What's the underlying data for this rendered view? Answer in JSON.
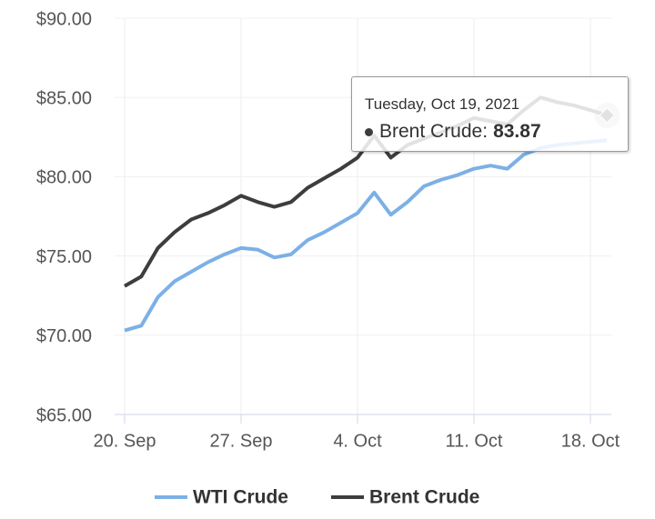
{
  "chart_data": {
    "type": "line",
    "x": [
      "20. Sep",
      "21. Sep",
      "22. Sep",
      "23. Sep",
      "24. Sep",
      "25. Sep",
      "26. Sep",
      "27. Sep",
      "28. Sep",
      "29. Sep",
      "30. Sep",
      "1. Oct",
      "2. Oct",
      "3. Oct",
      "4. Oct",
      "5. Oct",
      "6. Oct",
      "7. Oct",
      "8. Oct",
      "9. Oct",
      "10. Oct",
      "11. Oct",
      "12. Oct",
      "13. Oct",
      "14. Oct",
      "15. Oct",
      "16. Oct",
      "17. Oct",
      "18. Oct",
      "19. Oct"
    ],
    "xticks": [
      "20. Sep",
      "27. Sep",
      "4. Oct",
      "11. Oct",
      "18. Oct"
    ],
    "series": [
      {
        "name": "WTI Crude",
        "color": "#7cb0e6",
        "values": [
          70.3,
          70.6,
          72.4,
          73.4,
          74.0,
          74.6,
          75.1,
          75.5,
          75.4,
          74.9,
          75.1,
          76.0,
          76.5,
          77.1,
          77.7,
          79.0,
          77.6,
          78.4,
          79.4,
          79.8,
          80.1,
          80.5,
          80.7,
          80.5,
          81.4,
          81.8,
          82.0,
          82.1,
          82.2,
          82.3
        ]
      },
      {
        "name": "Brent Crude",
        "color": "#3d3d3d",
        "values": [
          73.1,
          73.7,
          75.5,
          76.5,
          77.3,
          77.7,
          78.2,
          78.8,
          78.4,
          78.1,
          78.4,
          79.3,
          79.9,
          80.5,
          81.2,
          82.6,
          81.2,
          82.0,
          82.4,
          82.8,
          83.2,
          83.7,
          83.5,
          83.3,
          84.2,
          85.0,
          84.7,
          84.5,
          84.2,
          83.87
        ]
      }
    ],
    "ylim": [
      65,
      90
    ],
    "yticks": [
      {
        "value": 65,
        "label": "$65.00"
      },
      {
        "value": 70,
        "label": "$70.00"
      },
      {
        "value": 75,
        "label": "$75.00"
      },
      {
        "value": 80,
        "label": "$80.00"
      },
      {
        "value": 85,
        "label": "$85.00"
      },
      {
        "value": 90,
        "label": "$90.00"
      }
    ],
    "grid": true,
    "legend": "bottom",
    "tooltip": {
      "date": "Tuesday, Oct 19, 2021",
      "series": 1,
      "index": 29
    }
  }
}
